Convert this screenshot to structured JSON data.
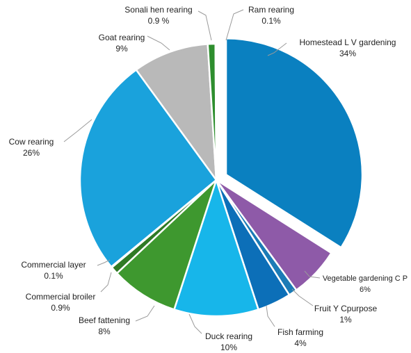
{
  "chart_data": {
    "type": "pie",
    "slices": [
      {
        "label": "Homestead L V gardening",
        "value_label": "34%",
        "value": 34,
        "color": "#0a80c0"
      },
      {
        "label": "Vegetable gardening  C P",
        "value_label": "6%",
        "value": 6,
        "color": "#8e5aa8"
      },
      {
        "label": "Fruit Y Cpurpose",
        "value_label": "1%",
        "value": 1,
        "color": "#1b7bb6"
      },
      {
        "label": "Fish farming",
        "value_label": "4%",
        "value": 4,
        "color": "#0c6fb8"
      },
      {
        "label": "Duck rearing",
        "value_label": "10%",
        "value": 10,
        "color": "#17b6ea"
      },
      {
        "label": "Beef fattening",
        "value_label": "8%",
        "value": 8,
        "color": "#3e982f"
      },
      {
        "label": "Commercial broiler",
        "value_label": "0.9%",
        "value": 0.9,
        "color": "#2f7a25"
      },
      {
        "label": "Commercial layer",
        "value_label": "0.1%",
        "value": 0.1,
        "color": "#6e4c9a"
      },
      {
        "label": "Cow rearing",
        "value_label": "26%",
        "value": 26,
        "color": "#1aa2dc"
      },
      {
        "label": "Goat rearing",
        "value_label": "9%",
        "value": 9,
        "color": "#b9b9b9"
      },
      {
        "label": "Sonali hen rearing",
        "value_label": "0.9 %",
        "value": 0.9,
        "color": "#2e8e2e"
      },
      {
        "label": "Ram rearing",
        "value_label": "0.1%",
        "value": 0.1,
        "color": "#1a5f8a"
      }
    ],
    "legend": "none",
    "data_labels": "outside with leader lines"
  }
}
